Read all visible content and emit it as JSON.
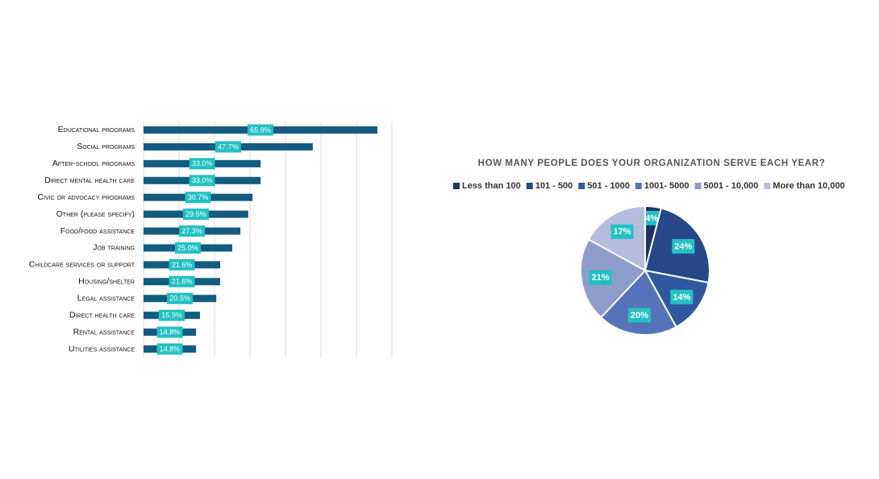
{
  "chart_data": [
    {
      "type": "bar",
      "orientation": "horizontal",
      "categories": [
        "Educational programs",
        "Social programs",
        "After-school programs",
        "Direct mental health care",
        "Civic or advocacy programs",
        "Other (please specify)",
        "Food/food assistance",
        "Job training",
        "Childcare services or support",
        "Housing/shelter",
        "Legal assistance",
        "Direct health care",
        "Rental assistance",
        "Utilities assistance"
      ],
      "values": [
        65.9,
        47.7,
        33.0,
        33.0,
        30.7,
        29.5,
        27.3,
        25.0,
        21.6,
        21.6,
        20.5,
        15.9,
        14.8,
        14.8
      ],
      "value_labels": [
        "65.9%",
        "47.7%",
        "33.0%",
        "33.0%",
        "30.7%",
        "29.5%",
        "27.3%",
        "25.0%",
        "21.6%",
        "21.6%",
        "20.5%",
        "15.9%",
        "14.8%",
        "14.8%"
      ],
      "color": "#135b80",
      "label_color": "#22c1c3",
      "xlim": [
        0,
        70
      ],
      "xticks": [
        0,
        10,
        20,
        30,
        40,
        50,
        60,
        70
      ],
      "grid": true
    },
    {
      "type": "pie",
      "title": "HOW MANY PEOPLE DOES YOUR ORGANIZATION SERVE EACH YEAR?",
      "categories": [
        "Less than 100",
        "101 - 500",
        "501 - 1000",
        "1001- 5000",
        "5001 - 10,000",
        "More than 10,000"
      ],
      "values": [
        4,
        24,
        14,
        20,
        21,
        17
      ],
      "value_labels": [
        "4%",
        "24%",
        "14%",
        "20%",
        "21%",
        "17%"
      ],
      "colors": [
        "#1d3461",
        "#27478a",
        "#2f58a0",
        "#5673ba",
        "#8c9ccc",
        "#b3bddc"
      ],
      "label_color": "#22c1c3",
      "legend": "top"
    }
  ]
}
